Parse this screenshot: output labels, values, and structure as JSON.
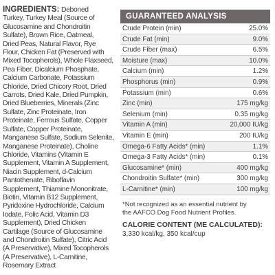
{
  "ingredients": {
    "heading": "INGREDIENTS:",
    "lines": [
      " Deboned",
      "Turkey, Turkey Meal (Source of",
      "Glucosamine and Chondroitin",
      "Sulfate), Brown Rice, Oatmeal,",
      "Dried Peas, Natural Flavor, Rye",
      "Flour, Chicken Fat (Preserved with",
      "Mixed Tocopherols), Whole Flaxseed,",
      "Pea Fiber, Dicalcium Phosphate,",
      "Calcium Carbonate, Potassium",
      "Chloride, Dried Chicory Root, Dried",
      "Carrots, Dried Kale, Dried Pumpkin,",
      "Dried Blueberries, Minerals (Zinc",
      "Sulfate, Zinc Proteinate, Iron",
      "Proteinate, Ferrous Sulfate, Copper",
      "Sulfate, Copper Proteinate,",
      "Manganese Sulfate, Sodium Selenite,",
      "Manganese Proteinate), Choline",
      "Chloride, Vitamins (Vitamin E",
      "Supplement, Vitamin A Supplement,",
      "Niacin Supplement, d-Calcium",
      "Pantothenate, Riboflavin",
      "Supplement, Thiamine Mononitrate,",
      "Biotin, Vitamin B12 Supplement,",
      "Pyridoxine Hydrochloride, Calcium",
      "Iodate, Folic Acid, Vitamin D3",
      "Supplement), Dried Chicken",
      "Cartilage (Source of Glucosamine",
      "and Chondroitin Sulfate), Citric Acid",
      "(A Preservative), Mixed Tocopherols",
      "(A Preservative), L-Carnitine,",
      "Rosemary Extract"
    ]
  },
  "analysis": {
    "title": "GUARANTEED ANALYSIS",
    "rows": [
      [
        "Crude Protein (min)",
        "25.0%"
      ],
      [
        "Crude Fat (min)",
        "9.0%"
      ],
      [
        "Crude Fiber (max)",
        "6.5%"
      ],
      [
        "Moisture (max)",
        "10.0%"
      ],
      [
        "Calcium (min)",
        "1.2%"
      ],
      [
        "Phosphorus (min)",
        "0.9%"
      ],
      [
        "Potassium (min)",
        "0.6%"
      ],
      [
        "Zinc (min)",
        "175 mg/kg"
      ],
      [
        "Selenium (min)",
        "0.35 mg/kg"
      ],
      [
        "Vitamin A (min)",
        "20,000 IU/kg"
      ],
      [
        "Vitamin E (min)",
        "200 IU/kg"
      ],
      [
        "Omega-6 Fatty Acids* (min)",
        "1.1%"
      ],
      [
        "Omega-3 Fatty Acids* (min)",
        "0.1%"
      ],
      [
        "Glucosamine* (min)",
        "400 mg/kg"
      ],
      [
        "Chondroitin Sulfate* (min)",
        "300 mg/kg"
      ],
      [
        "L-Carnitine* (min)",
        "100 mg/kg"
      ]
    ],
    "footnote": [
      "*Not recognized as an essential nutrient by",
      "the AAFCO Dog Food Nutrient Profiles."
    ],
    "calorie_heading": "CALORIE CONTENT (ME CALCULATED):",
    "calorie_value": "3,330 kcal/kg, 350 kcal/cup"
  }
}
